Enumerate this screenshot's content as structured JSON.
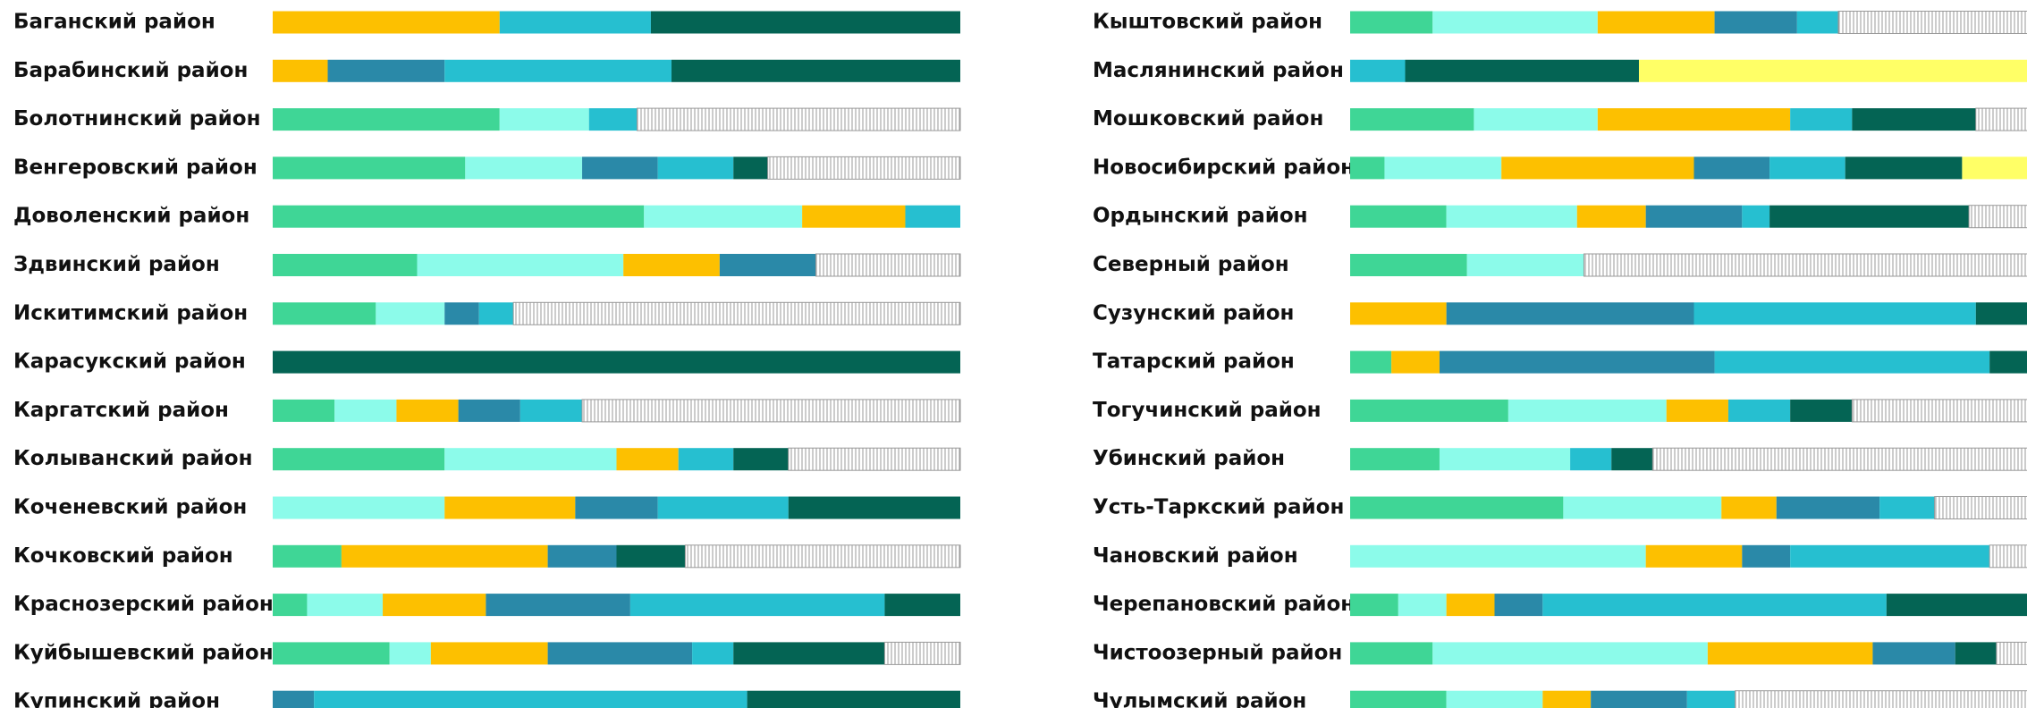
{
  "chart_data": [
    {
      "type": "stacked_bar",
      "orientation": "horizontal",
      "xlim": [
        0,
        100
      ],
      "categories": [
        "Баганский район",
        "Барабинский район",
        "Болотнинский район",
        "Венгеровский район",
        "Доволенский район",
        "Здвинский район",
        "Искитимский район",
        "Карасукский район",
        "Каргатский район",
        "Колыванский район",
        "Коченевский район",
        "Кочковский район",
        "Краснозерский район",
        "Куйбышевский район",
        "Купинский район"
      ],
      "series": [
        {
          "color": "#3fd696",
          "values": [
            0,
            0,
            33,
            28,
            54,
            21,
            15,
            0,
            9,
            25,
            0,
            10,
            5,
            17,
            0
          ]
        },
        {
          "color": "#8cfbea",
          "values": [
            0,
            0,
            13,
            17,
            23,
            30,
            10,
            0,
            9,
            25,
            25,
            0,
            11,
            6,
            0
          ]
        },
        {
          "color": "#fdc000",
          "values": [
            33,
            8,
            0,
            0,
            15,
            14,
            0,
            0,
            9,
            9,
            19,
            30,
            15,
            17,
            0
          ]
        },
        {
          "color": "#2a89a8",
          "values": [
            0,
            17,
            0,
            11,
            0,
            14,
            5,
            0,
            9,
            0,
            12,
            10,
            21,
            21,
            6
          ]
        },
        {
          "color": "#26bfd0",
          "values": [
            22,
            33,
            7,
            11,
            8,
            0,
            5,
            0,
            9,
            8,
            19,
            0,
            37,
            6,
            63
          ]
        },
        {
          "color": "#046454",
          "values": [
            45,
            42,
            0,
            5,
            0,
            0,
            0,
            100,
            0,
            8,
            25,
            10,
            11,
            22,
            31
          ]
        },
        {
          "color": "#9a9a9a",
          "hatched": true,
          "values": [
            0,
            0,
            47,
            28,
            0,
            21,
            65,
            0,
            55,
            25,
            0,
            40,
            0,
            11,
            0
          ]
        }
      ]
    },
    {
      "type": "stacked_bar",
      "orientation": "horizontal",
      "xlim": [
        0,
        100
      ],
      "categories": [
        "Кыштовский район",
        "Маслянинский район",
        "Мошковский район",
        "Новосибирский район",
        "Ордынский район",
        "Северный район",
        "Сузунский район",
        "Татарский район",
        "Тогучинский район",
        "Убинский район",
        "Усть-Таркский район",
        "Чановский район",
        "Черепановский район",
        "Чистоозерный район",
        "Чулымский район"
      ],
      "series": [
        {
          "color": "#3fd696",
          "values": [
            12,
            0,
            18,
            5,
            14,
            17,
            0,
            6,
            23,
            13,
            31,
            0,
            7,
            12,
            14
          ]
        },
        {
          "color": "#8cfbea",
          "values": [
            24,
            0,
            18,
            17,
            19,
            17,
            0,
            0,
            23,
            19,
            23,
            43,
            7,
            40,
            14
          ]
        },
        {
          "color": "#fdc000",
          "values": [
            17,
            0,
            28,
            28,
            10,
            0,
            14,
            7,
            9,
            0,
            8,
            14,
            7,
            24,
            7
          ]
        },
        {
          "color": "#2a89a8",
          "values": [
            12,
            0,
            0,
            11,
            14,
            0,
            36,
            40,
            0,
            0,
            15,
            7,
            7,
            12,
            14
          ]
        },
        {
          "color": "#26bfd0",
          "values": [
            6,
            8,
            9,
            11,
            4,
            0,
            41,
            40,
            9,
            6,
            8,
            29,
            50,
            0,
            7
          ]
        },
        {
          "color": "#046454",
          "values": [
            0,
            34,
            18,
            17,
            29,
            0,
            9,
            7,
            9,
            6,
            0,
            0,
            22,
            6,
            0
          ]
        },
        {
          "color": "#9a9a9a",
          "hatched": true,
          "values": [
            29,
            0,
            9,
            0,
            10,
            66,
            0,
            0,
            27,
            56,
            15,
            7,
            0,
            6,
            44
          ]
        },
        {
          "color": "#ffff66",
          "values": [
            0,
            58,
            0,
            11,
            0,
            0,
            0,
            0,
            0,
            0,
            0,
            0,
            0,
            0,
            0
          ]
        }
      ]
    }
  ]
}
